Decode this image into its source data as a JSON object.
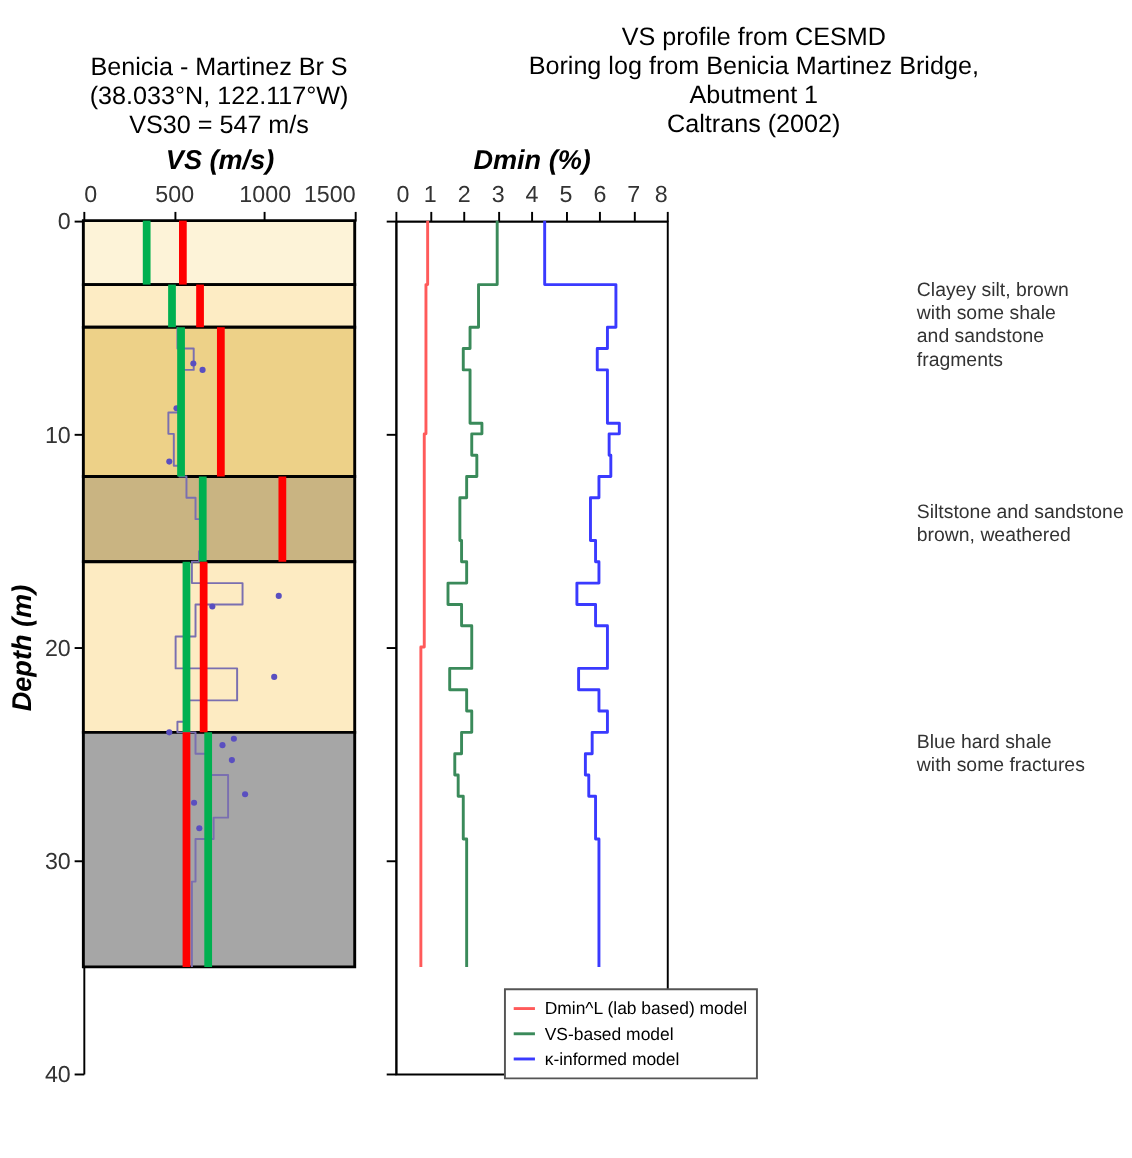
{
  "chart_data": [
    {
      "type": "line",
      "title": [
        "Benicia - Martinez Br S",
        "(38.033°N, 122.117°W)",
        "VS30 = 547 m/s"
      ],
      "xlabel": "VS (m/s)",
      "ylabel": "Depth (m)",
      "xlim": [
        0,
        1500
      ],
      "xticks": [
        0,
        500,
        1000,
        1500
      ],
      "ylim": [
        40,
        0
      ],
      "yticks": [
        0,
        10,
        20,
        30,
        40
      ],
      "grid": false,
      "bands": [
        {
          "axis": "y",
          "from": 0,
          "to": 3,
          "color": "#fdf3d8"
        },
        {
          "axis": "y",
          "from": 3,
          "to": 5,
          "color": "#fdecc4"
        },
        {
          "axis": "y",
          "from": 5,
          "to": 12,
          "color": "#edd188"
        },
        {
          "axis": "y",
          "from": 12,
          "to": 16,
          "color": "#c9b482"
        },
        {
          "axis": "y",
          "from": 16,
          "to": 24,
          "color": "#fdebc2"
        },
        {
          "axis": "y",
          "from": 24,
          "to": 35,
          "color": "#a6a6a6"
        }
      ],
      "series": [
        {
          "type": "line",
          "color": "#7a6fb0",
          "x": [
            520,
            520,
            610,
            610,
            540,
            540,
            470,
            470,
            500,
            500,
            530,
            530,
            570,
            570,
            620,
            620,
            660,
            660,
            640,
            640,
            600,
            600,
            880,
            880,
            620,
            620,
            510,
            510,
            850,
            850,
            560,
            560,
            520,
            520,
            620,
            620,
            690,
            690,
            800,
            800,
            720,
            720,
            620,
            620,
            600,
            600
          ],
          "values": [
            5,
            6,
            6,
            7,
            7,
            9,
            9,
            10,
            10,
            11.5,
            11.5,
            12,
            12,
            13,
            13,
            14,
            14,
            15.5,
            15.5,
            16,
            16,
            17,
            17,
            18,
            18,
            19.5,
            19.5,
            21,
            21,
            22.5,
            22.5,
            23.5,
            23.5,
            24,
            24,
            25,
            25,
            26,
            26,
            28,
            28,
            29,
            29,
            31,
            31,
            35
          ]
        },
        {
          "type": "scatter",
          "color": "#5a4fc0",
          "x": [
            608,
            659,
            515,
            475,
            1080,
            713,
            1055,
            475,
            832,
            769,
            821,
            894,
            612,
            641
          ],
          "values": [
            6.7,
            7.0,
            8.8,
            11.3,
            17.6,
            18.1,
            21.4,
            24.0,
            24.3,
            24.6,
            25.3,
            26.9,
            27.3,
            28.5
          ]
        },
        {
          "type": "line",
          "color": "#00b050",
          "x": [
            350,
            350,
            null,
            490,
            490,
            null,
            540,
            540,
            null,
            660,
            660,
            null,
            570,
            570,
            null,
            690,
            690
          ],
          "values": [
            0,
            3,
            null,
            3,
            5,
            null,
            5,
            12,
            null,
            12,
            16,
            null,
            16,
            24,
            null,
            24,
            35
          ]
        },
        {
          "type": "line",
          "color": "#ff0000",
          "x": [
            550,
            550,
            null,
            645,
            645,
            null,
            760,
            760,
            null,
            1100,
            1100,
            null,
            665,
            665,
            null,
            570,
            570
          ],
          "values": [
            0,
            3,
            null,
            3,
            5,
            null,
            5,
            12,
            null,
            12,
            16,
            null,
            16,
            24,
            null,
            24,
            35
          ]
        }
      ]
    },
    {
      "type": "line",
      "xlabel": "Dmin (%)",
      "xlim": [
        0,
        8
      ],
      "xticks": [
        0,
        1,
        2,
        3,
        4,
        5,
        6,
        7,
        8
      ],
      "ylim": [
        40,
        0
      ],
      "yticks": [
        0,
        10,
        20,
        30,
        40
      ],
      "tick_labels": "x",
      "grid": false,
      "legend": "bottom right",
      "series": [
        {
          "type": "line",
          "name": "Dmin^L (lab based) model",
          "color": "#ff5a5a",
          "x": [
            0.95,
            0.95,
            0.9,
            0.9,
            0.85,
            0.85,
            0.75,
            0.75
          ],
          "values": [
            0,
            3,
            3,
            10,
            10,
            20,
            20,
            35
          ]
        },
        {
          "type": "line",
          "name": "VS-based model",
          "color": "#3a8a5a",
          "x": [
            3.0,
            3.0,
            2.45,
            2.45,
            2.2,
            2.2,
            2.0,
            2.0,
            2.2,
            2.2,
            2.55,
            2.55,
            2.25,
            2.25,
            2.4,
            2.4,
            2.1,
            2.1,
            1.9,
            1.9,
            1.95,
            1.95,
            2.1,
            2.1,
            1.55,
            1.55,
            1.95,
            1.95,
            2.25,
            2.25,
            1.6,
            1.6,
            2.1,
            2.1,
            2.25,
            2.25,
            1.95,
            1.95,
            1.75,
            1.75,
            1.85,
            1.85,
            2.0,
            2.0,
            2.1,
            2.1
          ],
          "values": [
            0,
            3,
            3,
            5,
            5,
            6,
            6,
            7,
            7,
            9.5,
            9.5,
            10,
            10,
            11,
            11,
            12,
            12,
            13,
            13,
            15,
            15,
            16,
            16,
            17,
            17,
            18,
            18,
            19,
            19,
            21,
            21,
            22,
            22,
            23,
            23,
            24,
            24,
            25,
            25,
            26,
            26,
            27,
            27,
            29,
            29,
            35
          ]
        },
        {
          "type": "line",
          "name": "κ-informed model",
          "color": "#3a3aff",
          "x": [
            4.4,
            4.4,
            6.5,
            6.5,
            6.25,
            6.25,
            5.95,
            5.95,
            6.25,
            6.25,
            6.6,
            6.6,
            6.3,
            6.3,
            6.35,
            6.35,
            6.0,
            6.0,
            5.75,
            5.75,
            5.9,
            5.9,
            6.0,
            6.0,
            5.35,
            5.35,
            5.9,
            5.9,
            6.25,
            6.25,
            5.4,
            5.4,
            6.0,
            6.0,
            6.25,
            6.25,
            5.8,
            5.8,
            5.6,
            5.6,
            5.7,
            5.7,
            5.9,
            5.9,
            6.0,
            6.0
          ],
          "values": [
            0,
            3,
            3,
            5,
            5,
            6,
            6,
            7,
            7,
            9.5,
            9.5,
            10,
            10,
            11,
            11,
            12,
            12,
            13,
            13,
            15,
            15,
            16,
            16,
            17,
            17,
            18,
            18,
            19,
            19,
            21,
            21,
            22,
            22,
            23,
            23,
            24,
            24,
            25,
            25,
            26,
            26,
            27,
            27,
            29,
            29,
            35
          ]
        }
      ]
    },
    {
      "type": "other",
      "title": [
        "VS profile from CESMD",
        "Boring log from Benicia Martinez Bridge,",
        "Abutment 1",
        "Caltrans (2002)"
      ],
      "annotations": [
        "Clayey silt, brown\nwith some shale\nand sandstone\nfragments",
        "Siltstone and sandstone\nbrown, weathered",
        "Blue hard shale\nwith some fractures"
      ]
    }
  ]
}
